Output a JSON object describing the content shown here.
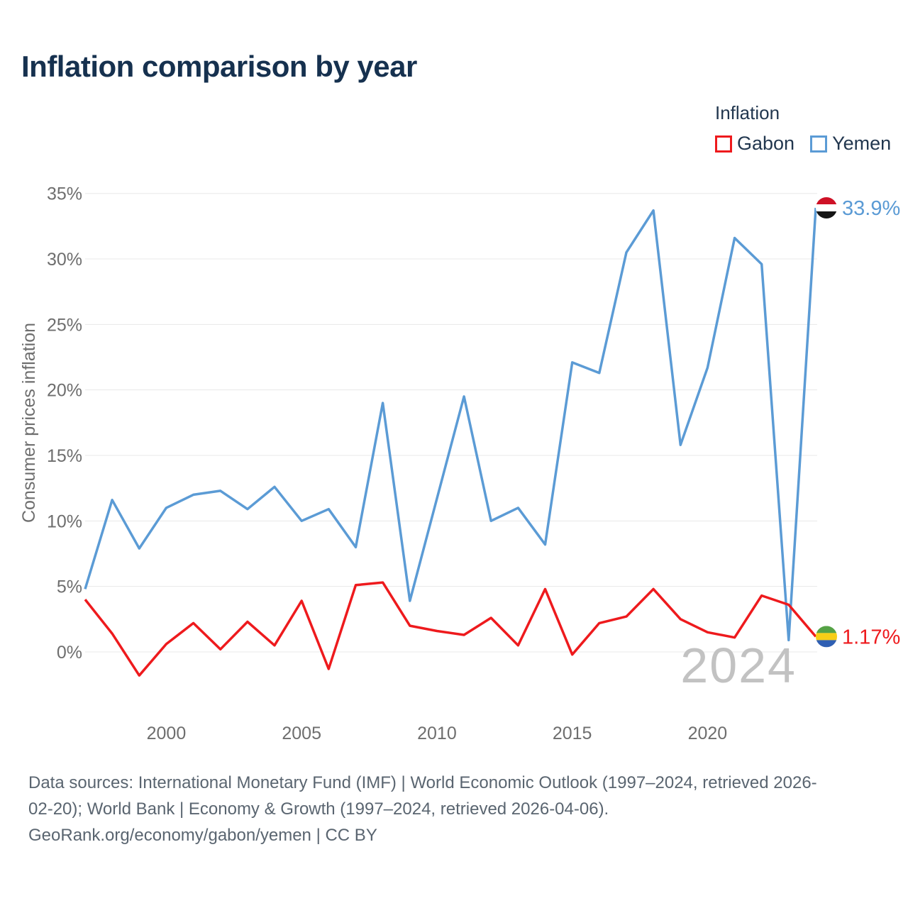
{
  "page": {
    "title": "Inflation comparison by year"
  },
  "legend": {
    "title": "Inflation",
    "items": [
      {
        "label": "Gabon",
        "color": "#ee1a1d"
      },
      {
        "label": "Yemen",
        "color": "#5b9bd5"
      }
    ]
  },
  "watermark": "2024",
  "footer": {
    "line1": "Data sources: International Monetary Fund (IMF) | World Economic Outlook (1997–2024, retrieved 2026-",
    "line2": "02-20); World Bank | Economy & Growth (1997–2024, retrieved 2026-04-06).",
    "line3": "GeoRank.org/economy/gabon/yemen | CC BY"
  },
  "chart_data": {
    "type": "line",
    "title": "Inflation comparison by year",
    "xlabel": "",
    "ylabel": "Consumer prices inflation",
    "x": [
      1997,
      1998,
      1999,
      2000,
      2001,
      2002,
      2003,
      2004,
      2005,
      2006,
      2007,
      2008,
      2009,
      2010,
      2011,
      2012,
      2013,
      2014,
      2015,
      2016,
      2017,
      2018,
      2019,
      2020,
      2021,
      2022,
      2023,
      2024
    ],
    "xticks": [
      2000,
      2005,
      2010,
      2015,
      2020
    ],
    "yticks": [
      0,
      5,
      10,
      15,
      20,
      25,
      30,
      35
    ],
    "ytick_suffix": "%",
    "ylim": [
      -3.5,
      36.5
    ],
    "grid": true,
    "grid_color": "#e8e8e8",
    "tick_color": "#6e6e6e",
    "legend_position": "top-right",
    "series": [
      {
        "name": "Gabon",
        "color": "#ee1a1d",
        "end_label": "1.17%",
        "flag_colors": [
          "#55a245",
          "#f7ce17",
          "#2f5fb3"
        ],
        "values": [
          4.0,
          1.4,
          -1.8,
          0.6,
          2.2,
          0.2,
          2.3,
          0.5,
          3.9,
          -1.3,
          5.1,
          5.3,
          2.0,
          1.6,
          1.3,
          2.6,
          0.5,
          4.8,
          -0.2,
          2.2,
          2.7,
          4.8,
          2.5,
          1.5,
          1.1,
          4.3,
          3.6,
          1.17
        ]
      },
      {
        "name": "Yemen",
        "color": "#5b9bd5",
        "end_label": "33.9%",
        "flag_colors": [
          "#ce1126",
          "#ffffff",
          "#141414"
        ],
        "values": [
          4.8,
          11.6,
          7.9,
          11.0,
          12.0,
          12.3,
          10.9,
          12.6,
          10.0,
          10.9,
          8.0,
          19.0,
          3.9,
          11.7,
          19.5,
          10.0,
          11.0,
          8.2,
          22.1,
          21.3,
          30.5,
          33.7,
          15.8,
          21.7,
          31.6,
          29.6,
          0.9,
          33.9
        ]
      }
    ]
  }
}
